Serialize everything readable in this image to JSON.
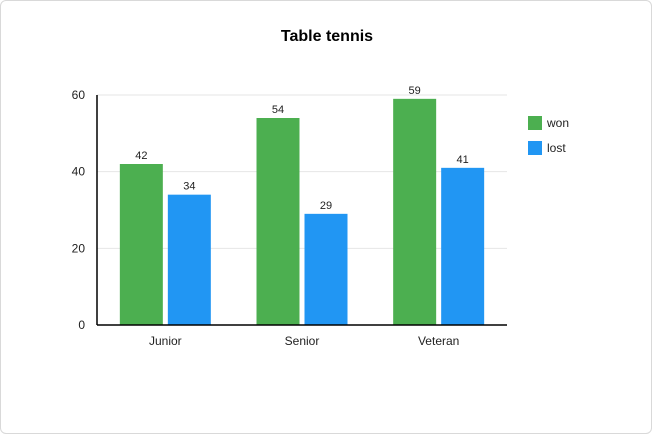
{
  "chart_data": {
    "type": "bar",
    "title": "Table tennis",
    "categories": [
      "Junior",
      "Senior",
      "Veteran"
    ],
    "series": [
      {
        "name": "won",
        "values": [
          42,
          54,
          59
        ],
        "color": "#4caf50"
      },
      {
        "name": "lost",
        "values": [
          34,
          29,
          41
        ],
        "color": "#2196f3"
      }
    ],
    "yticks": [
      0,
      20,
      40,
      60
    ],
    "ylim": [
      0,
      60
    ],
    "xlabel": "",
    "ylabel": "",
    "grid": true,
    "legend": "right"
  }
}
